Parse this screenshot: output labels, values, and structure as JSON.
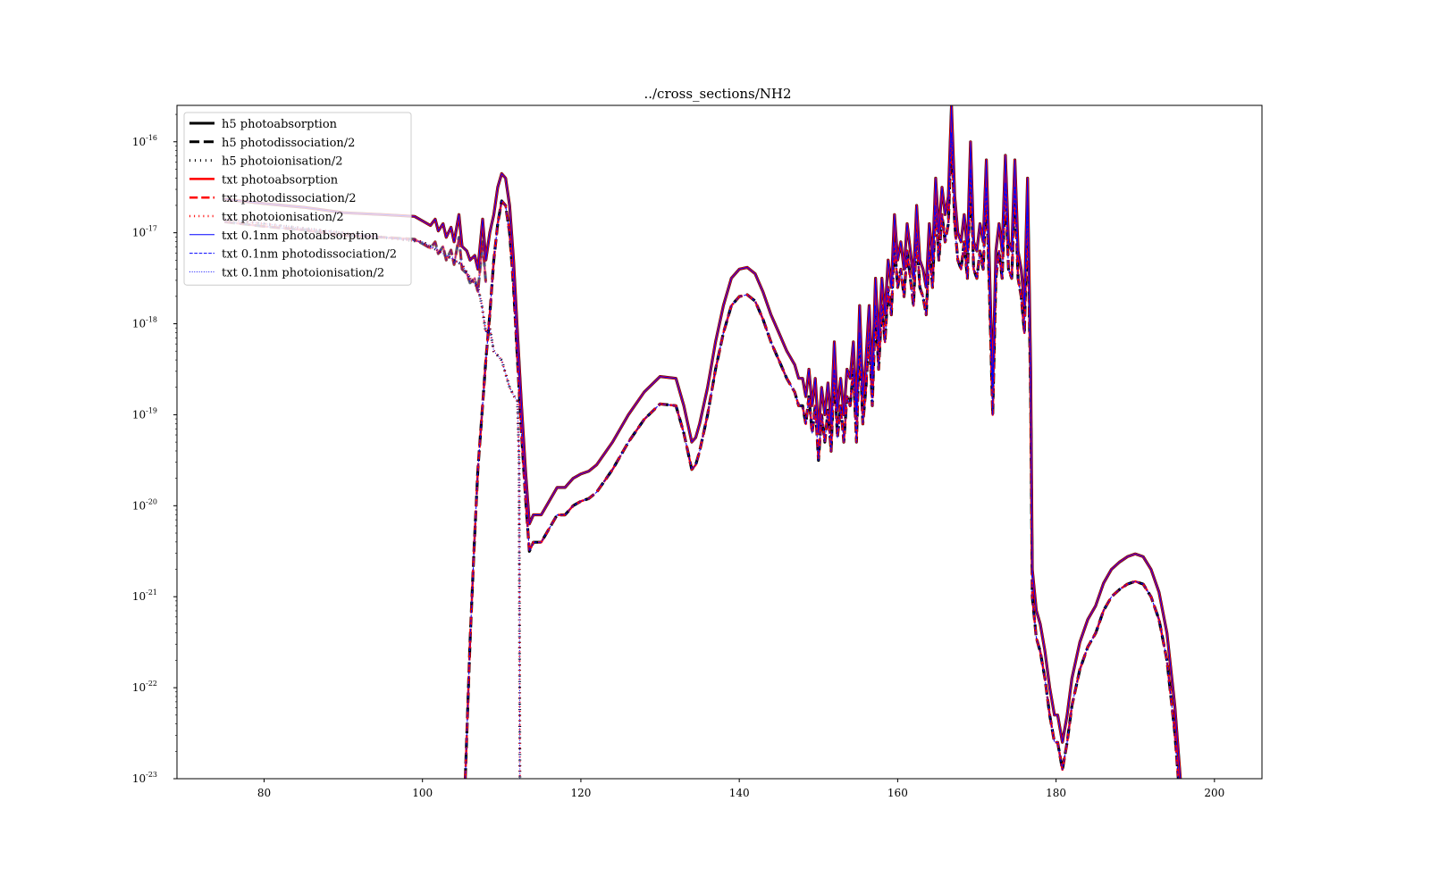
{
  "chart_data": {
    "type": "line",
    "title": "../cross_sections/NH2",
    "xlabel": "",
    "ylabel": "",
    "xlim": [
      69,
      206
    ],
    "ylim_exponent": [
      -23,
      -15.6
    ],
    "yscale": "log",
    "grid": false,
    "legend_placement": "top-left",
    "x_ticks": [
      {
        "value": 80,
        "label": "80"
      },
      {
        "value": 100,
        "label": "100"
      },
      {
        "value": 120,
        "label": "120"
      },
      {
        "value": 140,
        "label": "140"
      },
      {
        "value": 160,
        "label": "160"
      },
      {
        "value": 180,
        "label": "180"
      },
      {
        "value": 200,
        "label": "200"
      }
    ],
    "y_ticks": [
      {
        "exp": -16,
        "base": "10",
        "sup": "-16"
      },
      {
        "exp": -17,
        "base": "10",
        "sup": "-17"
      },
      {
        "exp": -18,
        "base": "10",
        "sup": "-18"
      },
      {
        "exp": -19,
        "base": "10",
        "sup": "-19"
      },
      {
        "exp": -20,
        "base": "10",
        "sup": "-20"
      },
      {
        "exp": -21,
        "base": "10",
        "sup": "-21"
      },
      {
        "exp": -22,
        "base": "10",
        "sup": "-22"
      },
      {
        "exp": -23,
        "base": "10",
        "sup": "-23"
      }
    ],
    "colors": {
      "h5": "#000000",
      "txt": "#ff0000",
      "txt01": "#0000ff"
    },
    "legend": [
      {
        "label": "h5 photoabsorption",
        "color": "#000000",
        "style": "solid",
        "width": 3
      },
      {
        "label": "h5 photodissociation/2",
        "color": "#000000",
        "style": "dashed",
        "width": 3
      },
      {
        "label": "h5 photoionisation/2",
        "color": "#000000",
        "style": "dotted",
        "width": 3
      },
      {
        "label": "txt photoabsorption",
        "color": "#ff0000",
        "style": "solid",
        "width": 2.5
      },
      {
        "label": "txt photodissociation/2",
        "color": "#ff0000",
        "style": "dashed",
        "width": 2.5
      },
      {
        "label": "txt photoionisation/2",
        "color": "#ff0000",
        "style": "dotted",
        "width": 2.5
      },
      {
        "label": "txt 0.1nm photoabsorption",
        "color": "#0000ff",
        "style": "solid",
        "width": 1
      },
      {
        "label": "txt 0.1nm photodissociation/2",
        "color": "#0000ff",
        "style": "dashed",
        "width": 1
      },
      {
        "label": "txt 0.1nm photoionisation/2",
        "color": "#0000ff",
        "style": "dotted",
        "width": 1
      }
    ],
    "note_units": "x in nm (as printed on axis), y as log10 of cross section in cm^2",
    "series": [
      {
        "key": "photoabsorption",
        "points": [
          [
            75,
            -16.63
          ],
          [
            80,
            -16.68
          ],
          [
            85,
            -16.72
          ],
          [
            90,
            -16.78
          ],
          [
            95,
            -16.8
          ],
          [
            99,
            -16.82
          ],
          [
            100,
            -16.87
          ],
          [
            101,
            -16.92
          ],
          [
            101.6,
            -16.85
          ],
          [
            102,
            -16.98
          ],
          [
            102.6,
            -16.9
          ],
          [
            103,
            -17.05
          ],
          [
            103.6,
            -16.94
          ],
          [
            104,
            -17.1
          ],
          [
            104.6,
            -16.8
          ],
          [
            105,
            -17.15
          ],
          [
            105.6,
            -17.2
          ],
          [
            106,
            -17.3
          ],
          [
            106.6,
            -17.25
          ],
          [
            107,
            -17.4
          ],
          [
            107.6,
            -16.85
          ],
          [
            108,
            -17.3
          ],
          [
            108.5,
            -17.0
          ],
          [
            109,
            -16.8
          ],
          [
            109.5,
            -16.5
          ],
          [
            110,
            -16.35
          ],
          [
            110.5,
            -16.4
          ],
          [
            111,
            -16.7
          ],
          [
            111.5,
            -17.3
          ],
          [
            112,
            -18.1
          ],
          [
            112.5,
            -18.9
          ],
          [
            113,
            -19.6
          ],
          [
            113.5,
            -20.2
          ],
          [
            114,
            -20.1
          ],
          [
            115,
            -20.1
          ],
          [
            116,
            -19.95
          ],
          [
            117,
            -19.8
          ],
          [
            118,
            -19.8
          ],
          [
            119,
            -19.7
          ],
          [
            120,
            -19.65
          ],
          [
            121,
            -19.62
          ],
          [
            122,
            -19.55
          ],
          [
            124,
            -19.3
          ],
          [
            126,
            -19.0
          ],
          [
            128,
            -18.75
          ],
          [
            130,
            -18.58
          ],
          [
            132,
            -18.6
          ],
          [
            133,
            -18.9
          ],
          [
            134,
            -19.3
          ],
          [
            134.5,
            -19.25
          ],
          [
            135,
            -19.1
          ],
          [
            136,
            -18.7
          ],
          [
            137,
            -18.2
          ],
          [
            138,
            -17.8
          ],
          [
            139,
            -17.5
          ],
          [
            140,
            -17.4
          ],
          [
            141,
            -17.38
          ],
          [
            142,
            -17.45
          ],
          [
            143,
            -17.65
          ],
          [
            144,
            -17.9
          ],
          [
            145,
            -18.1
          ],
          [
            146,
            -18.3
          ],
          [
            147,
            -18.45
          ],
          [
            147.5,
            -18.6
          ],
          [
            148,
            -18.6
          ],
          [
            148.4,
            -18.8
          ],
          [
            148.8,
            -18.5
          ],
          [
            149.2,
            -18.9
          ],
          [
            149.6,
            -18.6
          ],
          [
            150,
            -19.2
          ],
          [
            150.4,
            -18.7
          ],
          [
            150.8,
            -19.0
          ],
          [
            151.2,
            -18.65
          ],
          [
            151.6,
            -19.1
          ],
          [
            152,
            -18.2
          ],
          [
            152.4,
            -18.95
          ],
          [
            152.8,
            -18.6
          ],
          [
            153.2,
            -19.0
          ],
          [
            153.6,
            -18.5
          ],
          [
            154,
            -18.6
          ],
          [
            154.4,
            -18.2
          ],
          [
            154.8,
            -19.0
          ],
          [
            155.2,
            -17.8
          ],
          [
            155.6,
            -18.8
          ],
          [
            156,
            -18.4
          ],
          [
            156.4,
            -17.8
          ],
          [
            156.8,
            -18.6
          ],
          [
            157.2,
            -17.5
          ],
          [
            157.6,
            -18.2
          ],
          [
            158,
            -17.5
          ],
          [
            158.4,
            -17.9
          ],
          [
            158.8,
            -17.3
          ],
          [
            159.2,
            -17.6
          ],
          [
            159.6,
            -16.8
          ],
          [
            160,
            -17.3
          ],
          [
            160.4,
            -17.1
          ],
          [
            160.8,
            -17.4
          ],
          [
            161.2,
            -16.9
          ],
          [
            161.6,
            -17.2
          ],
          [
            162,
            -17.5
          ],
          [
            162.4,
            -16.7
          ],
          [
            162.8,
            -17.3
          ],
          [
            163.2,
            -17.4
          ],
          [
            163.6,
            -17.6
          ],
          [
            164,
            -16.9
          ],
          [
            164.4,
            -17.3
          ],
          [
            164.8,
            -16.4
          ],
          [
            165.2,
            -17.0
          ],
          [
            165.6,
            -16.5
          ],
          [
            166,
            -16.8
          ],
          [
            166.4,
            -16.6
          ],
          [
            166.8,
            -15.6
          ],
          [
            167.2,
            -16.6
          ],
          [
            167.6,
            -17.0
          ],
          [
            168,
            -17.1
          ],
          [
            168.4,
            -16.8
          ],
          [
            168.8,
            -17.2
          ],
          [
            169.2,
            -16.0
          ],
          [
            169.6,
            -17.1
          ],
          [
            170,
            -17.2
          ],
          [
            170.4,
            -16.9
          ],
          [
            170.8,
            -17.1
          ],
          [
            171.2,
            -16.2
          ],
          [
            171.6,
            -17.4
          ],
          [
            172,
            -18.7
          ],
          [
            172.4,
            -17.2
          ],
          [
            172.8,
            -16.9
          ],
          [
            173.2,
            -17.2
          ],
          [
            173.6,
            -16.15
          ],
          [
            174,
            -17.1
          ],
          [
            174.4,
            -17.2
          ],
          [
            174.8,
            -16.2
          ],
          [
            175.2,
            -17.2
          ],
          [
            175.6,
            -17.4
          ],
          [
            176,
            -17.8
          ],
          [
            176.4,
            -16.4
          ],
          [
            176.8,
            -18.5
          ],
          [
            177,
            -20.7
          ],
          [
            177.5,
            -21.15
          ],
          [
            178,
            -21.3
          ],
          [
            178.6,
            -21.6
          ],
          [
            179.2,
            -22.0
          ],
          [
            179.8,
            -22.3
          ],
          [
            180.2,
            -22.3
          ],
          [
            180.8,
            -22.6
          ],
          [
            181.4,
            -22.3
          ],
          [
            182,
            -21.9
          ],
          [
            183,
            -21.5
          ],
          [
            184,
            -21.25
          ],
          [
            185,
            -21.1
          ],
          [
            186,
            -20.85
          ],
          [
            187,
            -20.7
          ],
          [
            188,
            -20.62
          ],
          [
            189,
            -20.56
          ],
          [
            190,
            -20.53
          ],
          [
            191,
            -20.56
          ],
          [
            192,
            -20.7
          ],
          [
            193,
            -20.95
          ],
          [
            194,
            -21.4
          ],
          [
            195,
            -22.2
          ],
          [
            195.7,
            -23.0
          ]
        ],
        "offsets": {
          "absorption": 0.0,
          "dissociation": -0.301
        }
      }
    ],
    "ionisation": {
      "points": [
        [
          75,
          -16.85
        ],
        [
          80,
          -16.9
        ],
        [
          85,
          -16.95
        ],
        [
          90,
          -17.0
        ],
        [
          95,
          -17.05
        ],
        [
          100,
          -17.1
        ],
        [
          101,
          -17.15
        ],
        [
          102,
          -17.2
        ],
        [
          103,
          -17.25
        ],
        [
          104,
          -17.3
        ],
        [
          105,
          -17.35
        ],
        [
          106,
          -17.5
        ],
        [
          107,
          -17.6
        ],
        [
          107.5,
          -17.8
        ],
        [
          108,
          -18.1
        ],
        [
          108.5,
          -18.05
        ],
        [
          109,
          -18.3
        ],
        [
          110,
          -18.4
        ],
        [
          111,
          -18.7
        ],
        [
          111.6,
          -18.8
        ],
        [
          112,
          -18.85
        ],
        [
          112.2,
          -19.5
        ],
        [
          112.3,
          -23.0
        ]
      ]
    },
    "dissociation_left_rise": {
      "points": [
        [
          105.4,
          -23.0
        ],
        [
          106,
          -21.5
        ],
        [
          106.5,
          -20.5
        ],
        [
          107,
          -19.6
        ],
        [
          107.5,
          -19.0
        ],
        [
          108,
          -18.4
        ],
        [
          108.5,
          -17.9
        ],
        [
          109,
          -17.3
        ],
        [
          109.5,
          -16.9
        ],
        [
          110,
          -16.65
        ]
      ]
    }
  }
}
